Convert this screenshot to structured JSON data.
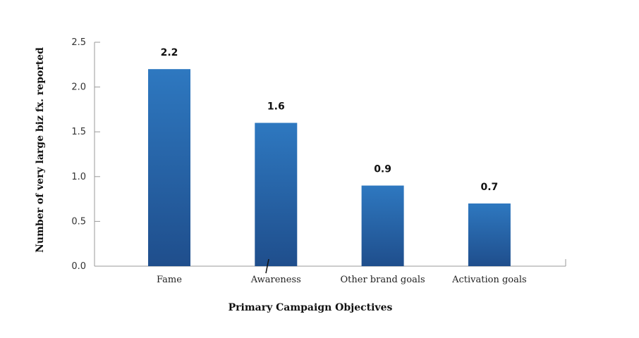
{
  "chart_data": {
    "type": "bar",
    "categories": [
      "Fame",
      "Awareness",
      "Other brand goals",
      "Activation goals"
    ],
    "values": [
      2.2,
      1.6,
      0.9,
      0.7
    ],
    "data_labels": [
      "2.2",
      "1.6",
      "0.9",
      "0.7"
    ],
    "xlabel": "Primary Campaign Objectives",
    "ylabel": "Number of very large biz fx. reported",
    "ylim": [
      0,
      2.5
    ],
    "yticks": [
      0,
      0.5,
      1.0,
      1.5,
      2.0,
      2.5
    ],
    "ytick_labels": [
      "0.0",
      "0.5",
      "1.0",
      "1.5",
      "2.0",
      "2.5"
    ],
    "grid": false,
    "legend": "none",
    "colors": {
      "bar_top": "#2e78c0",
      "bar_bottom": "#1f4e8c",
      "axis": "#9a9a9a"
    }
  }
}
